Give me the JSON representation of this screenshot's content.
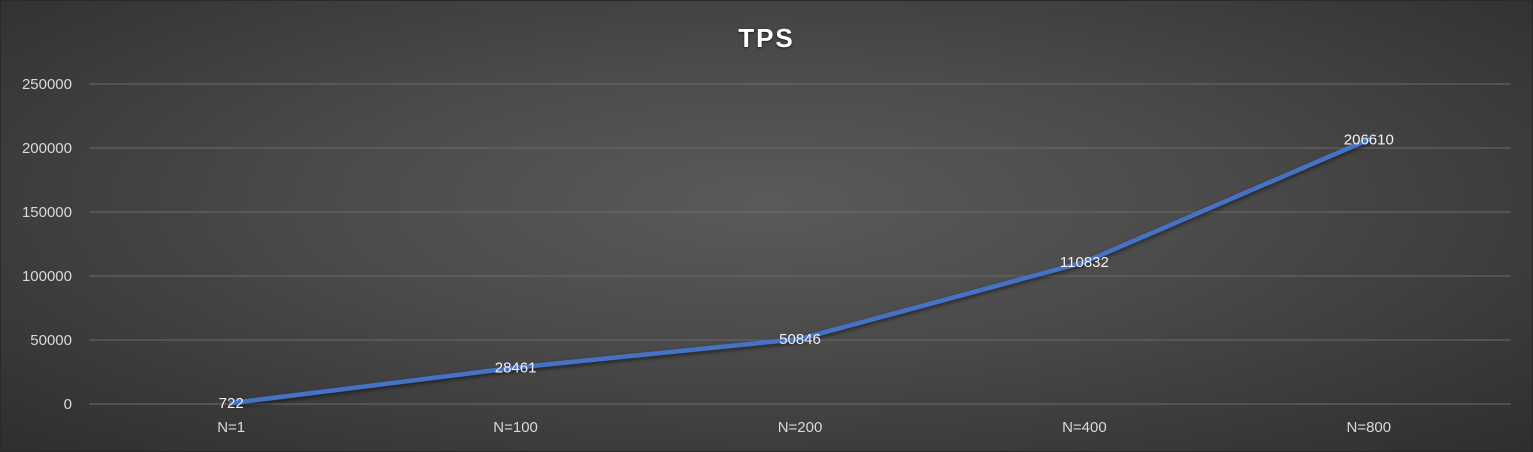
{
  "chart_data": {
    "type": "line",
    "title": "TPS",
    "xlabel": "",
    "ylabel": "",
    "categories": [
      "N=1",
      "N=100",
      "N=200",
      "N=400",
      "N=800"
    ],
    "series": [
      {
        "values": [
          722,
          28461,
          50846,
          110832,
          206610
        ],
        "color": "#4472c4"
      }
    ],
    "ylim": [
      0,
      250000
    ],
    "yticks": [
      0,
      50000,
      100000,
      150000,
      200000,
      250000
    ],
    "grid": true,
    "legend": "none",
    "data_labels": true
  }
}
